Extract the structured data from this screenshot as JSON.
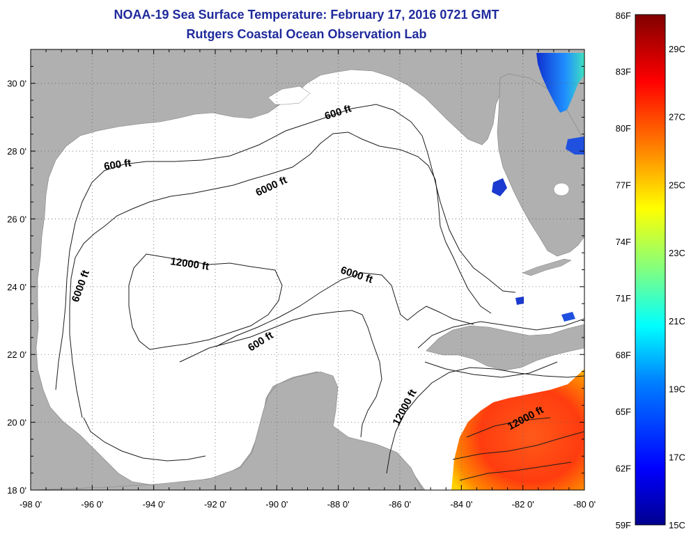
{
  "header": {
    "title": "NOAA-19 Sea Surface Temperature:  February 17, 2016 0721 GMT",
    "subtitle": "Rutgers Coastal Ocean Observation Lab"
  },
  "map": {
    "lon_range": [
      -98,
      -80
    ],
    "lat_range": [
      18,
      31
    ],
    "x_ticks": [
      {
        "lon": -98,
        "label": "-98 0'"
      },
      {
        "lon": -96,
        "label": "-96 0'"
      },
      {
        "lon": -94,
        "label": "-94 0'"
      },
      {
        "lon": -92,
        "label": "-92 0'"
      },
      {
        "lon": -90,
        "label": "-90 0'"
      },
      {
        "lon": -88,
        "label": "-88 0'"
      },
      {
        "lon": -86,
        "label": "-86 0'"
      },
      {
        "lon": -84,
        "label": "-84 0'"
      },
      {
        "lon": -82,
        "label": "-82 0'"
      },
      {
        "lon": -80,
        "label": "-80 0'"
      }
    ],
    "y_ticks": [
      {
        "lat": 18,
        "label": "18 0'"
      },
      {
        "lat": 20,
        "label": "20 0'"
      },
      {
        "lat": 22,
        "label": "22 0'"
      },
      {
        "lat": 24,
        "label": "24 0'"
      },
      {
        "lat": 26,
        "label": "26 0'"
      },
      {
        "lat": 28,
        "label": "28 0'"
      },
      {
        "lat": 30,
        "label": "30 0'"
      }
    ],
    "contour_labels": [
      {
        "text": "600 ft"
      },
      {
        "text": "600 ft"
      },
      {
        "text": "600 ft"
      },
      {
        "text": "6000 ft"
      },
      {
        "text": "6000 ft"
      },
      {
        "text": "6000 ft"
      },
      {
        "text": "12000 ft"
      },
      {
        "text": "12000 ft"
      },
      {
        "text": "12000 ft"
      }
    ],
    "land_color": "#b0b0b0",
    "water_color": "#ffffff"
  },
  "colorbar": {
    "range_f": [
      59,
      86
    ],
    "range_c": [
      15,
      30
    ],
    "f_labels": [
      "86F",
      "83F",
      "80F",
      "77F",
      "74F",
      "71F",
      "68F",
      "65F",
      "62F",
      "59F"
    ],
    "c_labels": [
      "29C",
      "27C",
      "25C",
      "23C",
      "21C",
      "19C",
      "17C",
      "15C"
    ],
    "colors": [
      "#00008f",
      "#0000ff",
      "#0080ff",
      "#00ffff",
      "#80ff80",
      "#ffff00",
      "#ff8000",
      "#ff0000",
      "#800000"
    ]
  }
}
